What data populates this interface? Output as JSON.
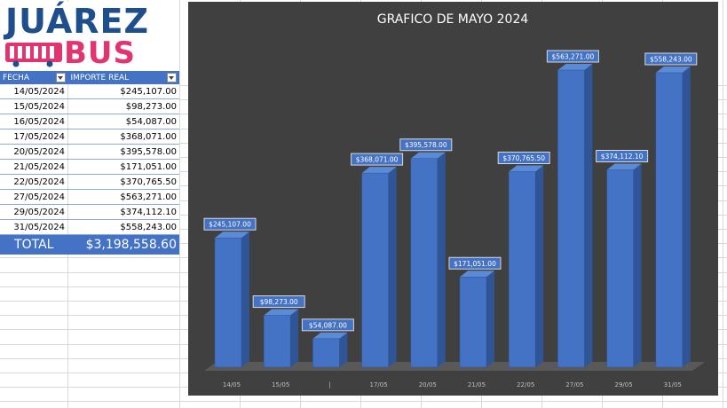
{
  "logo": {
    "line1": "JUÁREZ",
    "line2": "BUS"
  },
  "table": {
    "headers": [
      "FECHA",
      "IMPORTE REAL"
    ],
    "rows": [
      [
        "14/05/2024",
        "$245,107.00"
      ],
      [
        "15/05/2024",
        "$98,273.00"
      ],
      [
        "16/05/2024",
        "$54,087.00"
      ],
      [
        "17/05/2024",
        "$368,071.00"
      ],
      [
        "20/05/2024",
        "$395,578.00"
      ],
      [
        "21/05/2024",
        "$171,051.00"
      ],
      [
        "22/05/2024",
        "$370,765.50"
      ],
      [
        "27/05/2024",
        "$563,271.00"
      ],
      [
        "29/05/2024",
        "$374,112.10"
      ],
      [
        "31/05/2024",
        "$558,243.00"
      ]
    ],
    "total_label": "TOTAL",
    "total_value": "$3,198,558.60"
  },
  "colors": {
    "bar": "#4472c4",
    "chart_bg": "#404040",
    "header_bg": "#4472c4",
    "logo_blue": "#1f4e8c",
    "logo_pink": "#e2356f"
  },
  "chart_data": {
    "type": "bar",
    "title": "GRAFICO DE MAYO 2024",
    "categories": [
      "14/05",
      "15/05",
      "|",
      "17/05",
      "20/05",
      "21/05",
      "22/05",
      "27/05",
      "29/05",
      "31/05"
    ],
    "values": [
      245107.0,
      98273.0,
      54087.0,
      368071.0,
      395578.0,
      171051.0,
      370765.5,
      563271.0,
      374112.1,
      558243.0
    ],
    "data_labels": [
      "$245,107.00",
      "$98,273.00",
      "$54,087.00",
      "$368,071.00",
      "$395,578.00",
      "$171,051.00",
      "$370,765.50",
      "$563,271.00",
      "$374,112.10",
      "$558,243.00"
    ],
    "ylim": [
      0,
      600000
    ],
    "style": "3d-column",
    "grid": false,
    "legend": "none"
  }
}
